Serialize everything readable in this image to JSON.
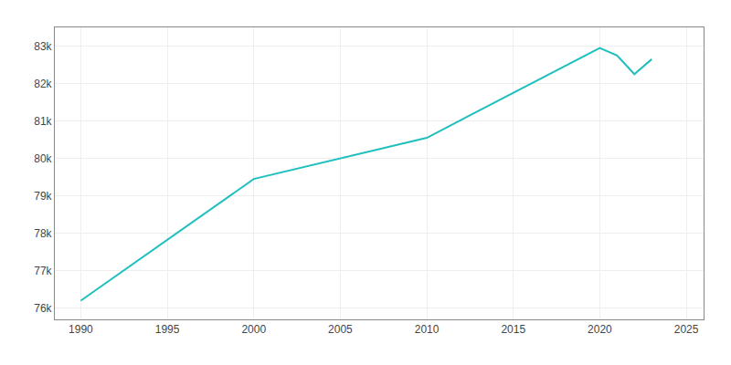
{
  "chart_data": {
    "type": "line",
    "x": [
      1990,
      2000,
      2010,
      2020,
      2021,
      2022,
      2023
    ],
    "values": [
      76200,
      79450,
      80550,
      82950,
      82750,
      82250,
      82650
    ],
    "color": "#20BFBF",
    "xlim": [
      1988.5,
      2026
    ],
    "xticks": [
      1990,
      1995,
      2000,
      2005,
      2010,
      2015,
      2020,
      2025
    ],
    "ylim": [
      75700,
      83500
    ],
    "yticks": [
      {
        "value": 76000,
        "label": "76k"
      },
      {
        "value": 77000,
        "label": "77k"
      },
      {
        "value": 78000,
        "label": "78k"
      },
      {
        "value": 79000,
        "label": "79k"
      },
      {
        "value": 80000,
        "label": "80k"
      },
      {
        "value": 81000,
        "label": "81k"
      },
      {
        "value": 82000,
        "label": "82k"
      },
      {
        "value": 83000,
        "label": "83k"
      }
    ],
    "grid": true
  }
}
